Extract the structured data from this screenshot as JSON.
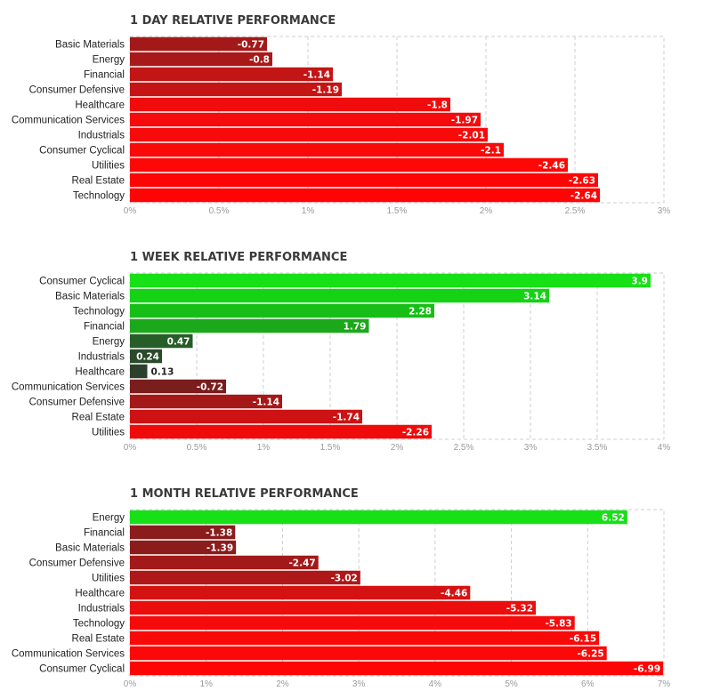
{
  "chart_data": [
    {
      "type": "bar",
      "orientation": "horizontal",
      "title": "1 DAY RELATIVE PERFORMANCE",
      "categories": [
        "Basic Materials",
        "Energy",
        "Financial",
        "Consumer Defensive",
        "Healthcare",
        "Communication Services",
        "Industrials",
        "Consumer Cyclical",
        "Utilities",
        "Real Estate",
        "Technology"
      ],
      "values": [
        -0.77,
        -0.8,
        -1.14,
        -1.19,
        -1.8,
        -1.97,
        -2.01,
        -2.1,
        -2.46,
        -2.63,
        -2.64
      ],
      "value_labels": [
        "-0.77",
        "-0.8",
        "-1.14",
        "-1.19",
        "-1.8",
        "-1.97",
        "-2.01",
        "-2.1",
        "-2.46",
        "-2.63",
        "-2.64"
      ],
      "colors": [
        "#a31919",
        "#a81a1a",
        "#c21515",
        "#c51414",
        "#f00c0c",
        "#f50b0b",
        "#f70a0a",
        "#fa0909",
        "#fd0707",
        "#fe0505",
        "#ff0404"
      ],
      "xticks": [
        "0%",
        "0.5%",
        "1%",
        "1.5%",
        "2%",
        "2.5%",
        "3%"
      ],
      "xlim": [
        0,
        3
      ],
      "xlabel": "",
      "ylabel": "",
      "grid": true
    },
    {
      "type": "bar",
      "orientation": "horizontal",
      "title": "1 WEEK RELATIVE PERFORMANCE",
      "categories": [
        "Consumer Cyclical",
        "Basic Materials",
        "Technology",
        "Financial",
        "Energy",
        "Industrials",
        "Healthcare",
        "Communication Services",
        "Consumer Defensive",
        "Real Estate",
        "Utilities"
      ],
      "values": [
        3.9,
        3.14,
        2.28,
        1.79,
        0.47,
        0.24,
        0.13,
        -0.72,
        -1.14,
        -1.74,
        -2.26
      ],
      "value_labels": [
        "3.9",
        "3.14",
        "2.28",
        "1.79",
        "0.47",
        "0.24",
        "0.13",
        "-0.72",
        "-1.14",
        "-1.74",
        "-2.26"
      ],
      "colors": [
        "#17e017",
        "#15d215",
        "#18be18",
        "#1ba81b",
        "#275e27",
        "#2a4a2a",
        "#2c3f2c",
        "#7a1d1d",
        "#a51818",
        "#cc1212",
        "#f00b0b"
      ],
      "xticks": [
        "0%",
        "0.5%",
        "1%",
        "1.5%",
        "2%",
        "2.5%",
        "3%",
        "3.5%",
        "4%"
      ],
      "xlim": [
        0,
        4
      ],
      "xlabel": "",
      "ylabel": "",
      "grid": true
    },
    {
      "type": "bar",
      "orientation": "horizontal",
      "title": "1 MONTH RELATIVE PERFORMANCE",
      "categories": [
        "Energy",
        "Financial",
        "Basic Materials",
        "Consumer Defensive",
        "Utilities",
        "Healthcare",
        "Industrials",
        "Technology",
        "Real Estate",
        "Communication Services",
        "Consumer Cyclical"
      ],
      "values": [
        6.52,
        -1.38,
        -1.39,
        -2.47,
        -3.02,
        -4.46,
        -5.32,
        -5.83,
        -6.15,
        -6.25,
        -6.99
      ],
      "value_labels": [
        "6.52",
        "-1.38",
        "-1.39",
        "-2.47",
        "-3.02",
        "-4.46",
        "-5.32",
        "-5.83",
        "-6.15",
        "-6.25",
        "-6.99"
      ],
      "colors": [
        "#17e017",
        "#8a1c1c",
        "#8b1c1c",
        "#a31919",
        "#af1818",
        "#d51212",
        "#ec0d0d",
        "#f50b0b",
        "#fa0909",
        "#fc0808",
        "#ff0404"
      ],
      "xticks": [
        "0%",
        "1%",
        "2%",
        "3%",
        "4%",
        "5%",
        "6%",
        "7%"
      ],
      "xlim": [
        0,
        7
      ],
      "xlabel": "",
      "ylabel": "",
      "grid": true
    }
  ]
}
